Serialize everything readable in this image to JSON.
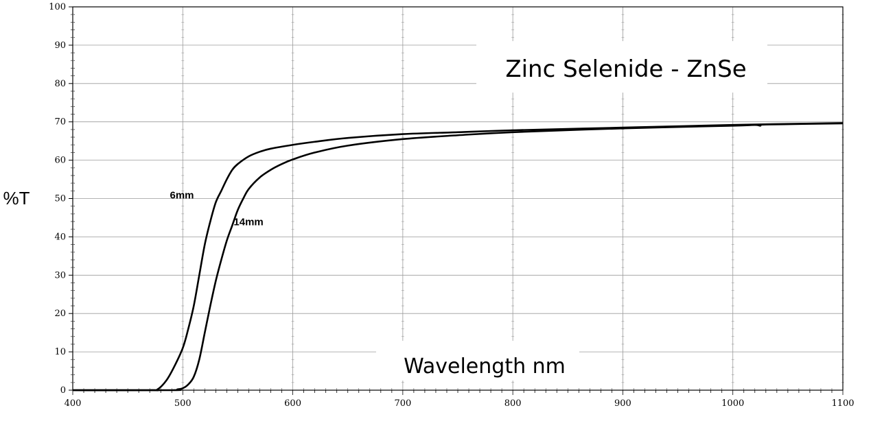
{
  "chart_data": {
    "type": "line",
    "title": "Zinc Selenide - ZnSe",
    "xlabel": "Wavelength nm",
    "ylabel": "%T",
    "xlim": [
      400,
      1100
    ],
    "ylim": [
      0,
      100
    ],
    "grid": true,
    "x_ticks": [
      "400",
      "500",
      "600",
      "700",
      "800",
      "900",
      "1000",
      "1100"
    ],
    "y_ticks": [
      "0",
      "10",
      "20",
      "30",
      "40",
      "50",
      "60",
      "70",
      "80",
      "90",
      "100"
    ],
    "series": [
      {
        "name": "6mm",
        "x": [
          400,
          470,
          477,
          485,
          492,
          500,
          505,
          510,
          515,
          520,
          525,
          530,
          535,
          540,
          545,
          550,
          560,
          570,
          580,
          600,
          620,
          650,
          700,
          750,
          800,
          900,
          1000,
          1100
        ],
        "y": [
          0,
          0,
          0.2,
          2.5,
          6,
          11,
          16,
          22,
          30,
          38,
          44,
          49,
          52,
          55,
          57.5,
          59,
          61,
          62.2,
          63,
          64,
          64.8,
          65.8,
          66.8,
          67.3,
          67.8,
          68.5,
          69.2,
          69.7
        ]
      },
      {
        "name": "14mm",
        "x": [
          400,
          490,
          495,
          500,
          505,
          510,
          515,
          520,
          525,
          530,
          535,
          540,
          545,
          550,
          555,
          560,
          570,
          580,
          590,
          600,
          620,
          650,
          700,
          750,
          800,
          900,
          1000,
          1020,
          1025,
          1030,
          1100
        ],
        "y": [
          0,
          0,
          0.2,
          0.5,
          1.5,
          3.5,
          8,
          15,
          22,
          28.5,
          34,
          39,
          43,
          47,
          50,
          52.5,
          55.5,
          57.5,
          59,
          60.2,
          62,
          63.8,
          65.5,
          66.5,
          67.3,
          68.3,
          69,
          69.2,
          69.0,
          69.3,
          69.6
        ]
      }
    ]
  }
}
